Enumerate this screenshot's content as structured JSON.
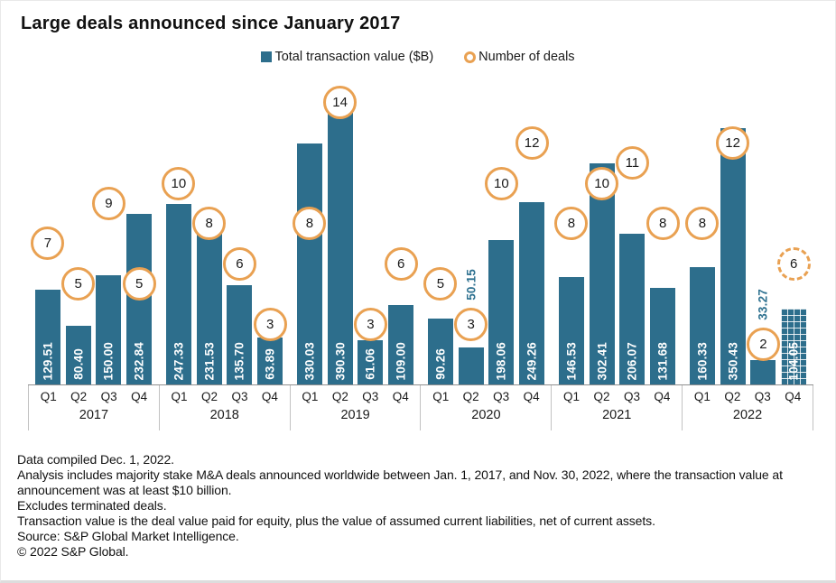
{
  "title": "Large deals announced since January 2017",
  "legend": {
    "items": [
      {
        "label": "Total transaction value ($B)",
        "marker": "square-icon",
        "color": "#2d6e8c"
      },
      {
        "label": "Number of deals",
        "marker": "ring-icon",
        "color": "#e9a152"
      }
    ]
  },
  "chart_data": {
    "type": "bar",
    "title": "Large deals announced since January 2017",
    "years": [
      "2017",
      "2018",
      "2019",
      "2020",
      "2021",
      "2022"
    ],
    "quarters": [
      "Q1",
      "Q2",
      "Q3",
      "Q4"
    ],
    "series": [
      {
        "name": "Total transaction value ($B)",
        "type": "bar",
        "color": "#2d6e8c",
        "values": [
          129.51,
          80.4,
          150.0,
          232.84,
          247.33,
          231.53,
          135.7,
          63.89,
          330.03,
          390.3,
          61.06,
          109.0,
          90.26,
          50.15,
          198.06,
          249.26,
          146.53,
          302.41,
          206.07,
          131.68,
          160.33,
          350.43,
          33.27,
          104.05
        ],
        "labels": [
          "129.51",
          "80.40",
          "150.00",
          "232.84",
          "247.33",
          "231.53",
          "135.70",
          "63.89",
          "330.03",
          "390.30",
          "61.06",
          "109.00",
          "90.26",
          "50.15",
          "198.06",
          "249.26",
          "146.53",
          "302.41",
          "206.07",
          "131.68",
          "160.33",
          "350.43",
          "33.27",
          "104.05"
        ]
      },
      {
        "name": "Number of deals",
        "type": "marker",
        "color": "#e9a152",
        "values": [
          7,
          5,
          9,
          5,
          10,
          8,
          6,
          3,
          8,
          14,
          3,
          6,
          5,
          3,
          10,
          12,
          8,
          10,
          11,
          8,
          8,
          12,
          2,
          6
        ]
      }
    ],
    "annotations": {
      "value_label_above_indexes": [
        13,
        22
      ],
      "hatched_bar_indexes": [
        23
      ],
      "dashed_marker_indexes": [
        23
      ]
    },
    "axes": {
      "value_axis_visible": false,
      "deals_axis_visible": false,
      "ylim_bars": [
        0,
        420
      ],
      "ylim_deals": [
        0,
        15
      ]
    },
    "legend_position": "top-center"
  },
  "footnotes": [
    "Data compiled Dec. 1, 2022.",
    "Analysis includes majority stake M&A deals announced worldwide between Jan. 1, 2017, and Nov. 30, 2022, where the transaction value at announcement was at least $10 billion.",
    "Excludes terminated deals.",
    "Transaction value is the deal value paid for equity, plus the value of assumed current liabilities, net of current assets.",
    "Source: S&P Global Market Intelligence.",
    "© 2022 S&P Global."
  ]
}
